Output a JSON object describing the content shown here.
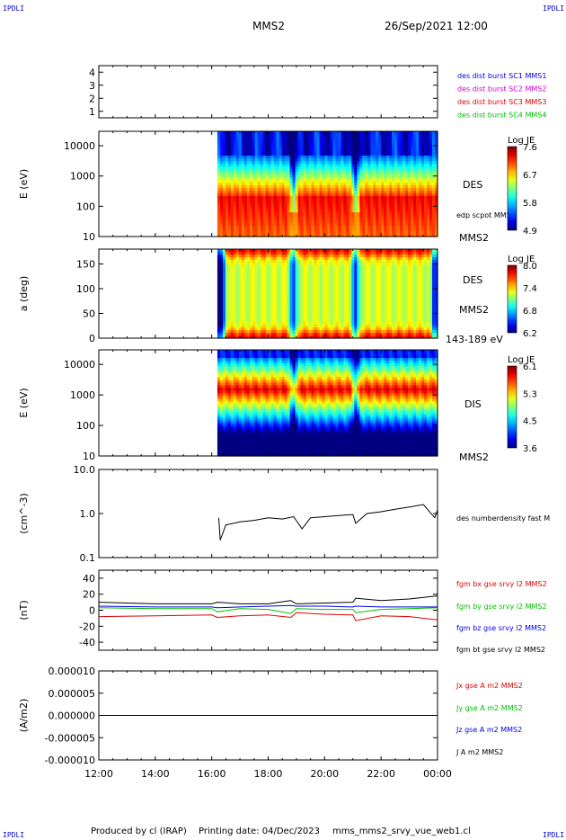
{
  "corner_label": "IPDLI",
  "header": {
    "spacecraft": "MMS2",
    "datetime": "26/Sep/2021 12:00"
  },
  "footer": {
    "produced_by": "Produced by cl (IRAP)",
    "printing_date": "Printing date: 04/Dec/2023",
    "filename": "mms_mms2_srvy_vue_web1.cl"
  },
  "colors": {
    "jet_low": "#000080",
    "jet_high": "#800000",
    "bx": "#e00000",
    "by": "#00c000",
    "bz": "#0000e0",
    "bt": "#000000"
  },
  "time_axis": {
    "ticks": [
      "12:00",
      "14:00",
      "16:00",
      "18:00",
      "20:00",
      "22:00",
      "00:00"
    ],
    "range_hours": [
      12,
      24
    ],
    "data_start_hour": 16.2
  },
  "chart_data": [
    {
      "type": "scatter",
      "panel": "burst-status",
      "yticks": [
        "1",
        "2",
        "3",
        "4"
      ],
      "ylim": [
        0.5,
        4.5
      ],
      "legend": [
        {
          "label": "des dist burst SC1 MMS1",
          "color": "#0000e0"
        },
        {
          "label": "des dist burst SC2 MMS2",
          "color": "#d000d0"
        },
        {
          "label": "des dist burst SC3 MMS3",
          "color": "#e00000"
        },
        {
          "label": "des dist burst SC4 MMS4",
          "color": "#00c000"
        }
      ],
      "values": []
    },
    {
      "type": "heatmap",
      "panel": "des-energy",
      "ylabel": "E (eV)",
      "yticks": [
        "10",
        "100",
        "1000",
        "10000"
      ],
      "yscale": "log",
      "ylim": [
        10,
        30000
      ],
      "right_labels": [
        "DES",
        "edp scpot MMS2",
        "MMS2"
      ],
      "colorbar": {
        "title": "Log JE",
        "ticks": [
          "7.6",
          "6.7",
          "5.8",
          "4.9"
        ],
        "range": [
          4.9,
          7.6
        ]
      },
      "peak_energy_eV": 200,
      "dips_hours": [
        18.9,
        21.1
      ]
    },
    {
      "type": "heatmap",
      "panel": "des-pitch-angle",
      "ylabel": "a (deg)",
      "yticks": [
        "0",
        "50",
        "100",
        "150"
      ],
      "ylim": [
        0,
        180
      ],
      "right_labels": [
        "DES",
        "MMS2",
        "143-189 eV"
      ],
      "colorbar": {
        "title": "Log JE",
        "ticks": [
          "8.0",
          "7.4",
          "6.8",
          "6.2"
        ],
        "range": [
          6.2,
          8.0
        ]
      },
      "dips_hours": [
        16.3,
        18.9,
        21.1,
        23.9
      ]
    },
    {
      "type": "heatmap",
      "panel": "dis-energy",
      "ylabel": "E (eV)",
      "yticks": [
        "10",
        "100",
        "1000",
        "10000"
      ],
      "yscale": "log",
      "ylim": [
        10,
        30000
      ],
      "right_labels": [
        "DIS",
        "MMS2"
      ],
      "colorbar": {
        "title": "Log JE",
        "ticks": [
          "6.1",
          "5.3",
          "4.5",
          "3.6"
        ],
        "range": [
          3.6,
          6.1
        ]
      },
      "peak_energy_eV": 1500,
      "dips_hours": [
        18.9,
        21.1
      ]
    },
    {
      "type": "line",
      "panel": "density",
      "ylabel": "(cm^-3)",
      "yticks": [
        "0.1",
        "1.0",
        "10.0"
      ],
      "yscale": "log",
      "ylim": [
        0.1,
        10
      ],
      "series": [
        {
          "name": "des numberdensity fast M",
          "color": "#000000",
          "x": [
            16.25,
            16.3,
            16.5,
            17.0,
            17.5,
            18.0,
            18.5,
            18.9,
            19.2,
            19.5,
            20.0,
            20.5,
            21.0,
            21.1,
            21.5,
            22.0,
            22.5,
            23.0,
            23.5,
            23.9,
            24.0
          ],
          "values": [
            0.8,
            0.25,
            0.55,
            0.65,
            0.7,
            0.8,
            0.75,
            0.85,
            0.45,
            0.8,
            0.85,
            0.9,
            0.95,
            0.6,
            1.0,
            1.1,
            1.25,
            1.4,
            1.6,
            0.8,
            1.2
          ]
        }
      ]
    },
    {
      "type": "line",
      "panel": "magnetic-field",
      "ylabel": "(nT)",
      "yticks": [
        "-40",
        "-20",
        "0",
        "20",
        "40"
      ],
      "ylim": [
        -50,
        50
      ],
      "series": [
        {
          "name": "fgm bx gse srvy l2 MMS2",
          "color": "#e00000",
          "x": [
            12,
            14,
            16,
            16.2,
            17,
            18,
            18.8,
            19,
            20,
            21,
            21.1,
            22,
            23,
            24
          ],
          "values": [
            -8,
            -7,
            -6,
            -9,
            -7,
            -6,
            -9,
            -3,
            -5,
            -6,
            -13,
            -7,
            -8,
            -12
          ]
        },
        {
          "name": "fgm by gse srvy l2 MMS2",
          "color": "#00c000",
          "x": [
            12,
            14,
            16,
            16.2,
            17,
            18,
            18.8,
            19,
            20,
            21,
            21.1,
            22,
            23,
            24
          ],
          "values": [
            3,
            2,
            2,
            -2,
            2,
            1,
            -4,
            2,
            1,
            1,
            -3,
            1,
            2,
            3
          ]
        },
        {
          "name": "fgm bz gse srvy l2 MMS2",
          "color": "#0000e0",
          "x": [
            12,
            14,
            16,
            16.2,
            17,
            18,
            18.8,
            19,
            20,
            21,
            21.1,
            22,
            23,
            24
          ],
          "values": [
            5,
            4,
            4,
            3,
            4,
            5,
            6,
            5,
            5,
            4,
            5,
            4,
            4,
            4
          ]
        },
        {
          "name": "fgm bt gse srvy l2 MMS2",
          "color": "#000000",
          "x": [
            12,
            14,
            16,
            16.2,
            17,
            18,
            18.8,
            19,
            20,
            21,
            21.1,
            22,
            23,
            24
          ],
          "values": [
            10,
            8,
            8,
            10,
            8,
            8,
            12,
            8,
            9,
            10,
            15,
            12,
            14,
            18
          ]
        }
      ]
    },
    {
      "type": "line",
      "panel": "current-density",
      "ylabel": "(A/m2)",
      "yticks": [
        "-0.000010",
        "-0.000005",
        "0.000000",
        "0.000005",
        "0.000010"
      ],
      "ylim": [
        -1e-05,
        1e-05
      ],
      "series": [
        {
          "name": "Jx gse A m2 MMS2",
          "color": "#e00000",
          "x": [
            12,
            24
          ],
          "values": [
            0,
            0
          ]
        },
        {
          "name": "Jy gse A m2 MMS2",
          "color": "#00c000",
          "x": [
            12,
            24
          ],
          "values": [
            0,
            0
          ]
        },
        {
          "name": "Jz gse A m2 MMS2",
          "color": "#0000e0",
          "x": [
            12,
            24
          ],
          "values": [
            0,
            0
          ]
        },
        {
          "name": "J A m2 MMS2",
          "color": "#000000",
          "x": [
            12,
            24
          ],
          "values": [
            0,
            0
          ]
        }
      ]
    }
  ]
}
